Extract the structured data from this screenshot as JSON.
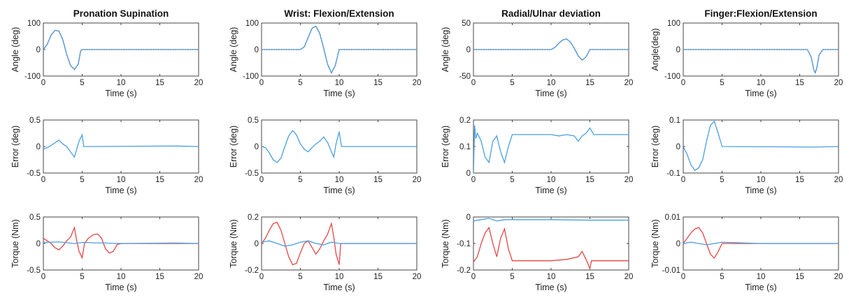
{
  "colors": {
    "measured": "#4a9fe0",
    "reference": "#e64646",
    "axis": "#444444"
  },
  "chart_data": [
    {
      "type": "line",
      "title": "Pronation Supination",
      "xlabel": "Time (s)",
      "ylabel": "Angle (deg)",
      "xlim": [
        0,
        20
      ],
      "ylim": [
        -100,
        100
      ],
      "xticks": [
        0,
        5,
        10,
        15,
        20
      ],
      "yticks": [
        -100,
        0,
        100
      ],
      "series": [
        {
          "style": "reference-dotted",
          "x": [
            0,
            0.5,
            1,
            1.5,
            2,
            2.5,
            3,
            3.5,
            4,
            4.5,
            4.8,
            5,
            20
          ],
          "y": [
            0,
            20,
            55,
            72,
            70,
            38,
            -18,
            -60,
            -75,
            -55,
            -5,
            0,
            0
          ]
        },
        {
          "style": "measured",
          "x": [
            0,
            0.5,
            1,
            1.5,
            2,
            2.5,
            3,
            3.5,
            4,
            4.5,
            4.8,
            5,
            20
          ],
          "y": [
            0,
            20,
            55,
            72,
            70,
            38,
            -18,
            -60,
            -75,
            -55,
            -5,
            0,
            0
          ]
        }
      ]
    },
    {
      "type": "line",
      "title": "Wrist: Flexion/Extension",
      "xlabel": "Time (s)",
      "ylabel": "Angle (deg)",
      "xlim": [
        0,
        20
      ],
      "ylim": [
        -100,
        100
      ],
      "xticks": [
        0,
        5,
        10,
        15,
        20
      ],
      "yticks": [
        -100,
        0,
        100
      ],
      "series": [
        {
          "style": "reference-dotted",
          "x": [
            0,
            5,
            5.5,
            6,
            6.5,
            7,
            7.5,
            8,
            8.5,
            9,
            9.5,
            10,
            20
          ],
          "y": [
            0,
            0,
            10,
            45,
            80,
            88,
            60,
            5,
            -55,
            -88,
            -60,
            0,
            0
          ]
        },
        {
          "style": "measured",
          "x": [
            0,
            5,
            5.5,
            6,
            6.5,
            7,
            7.5,
            8,
            8.5,
            9,
            9.5,
            10,
            20
          ],
          "y": [
            0,
            0,
            10,
            45,
            80,
            88,
            60,
            5,
            -55,
            -88,
            -60,
            0,
            0
          ]
        }
      ]
    },
    {
      "type": "line",
      "title": "Radial/Ulnar deviation",
      "xlabel": "Time (s)",
      "ylabel": "Angle (deg)",
      "xlim": [
        0,
        20
      ],
      "ylim": [
        -50,
        50
      ],
      "xticks": [
        0,
        5,
        10,
        15,
        20
      ],
      "yticks": [
        -50,
        0,
        50
      ],
      "series": [
        {
          "style": "reference-dotted",
          "x": [
            0,
            10,
            10.5,
            11,
            11.5,
            12,
            12.5,
            13,
            13.5,
            14,
            14.5,
            15,
            20
          ],
          "y": [
            0,
            0,
            4,
            12,
            18,
            20,
            14,
            2,
            -12,
            -20,
            -14,
            0,
            0
          ]
        },
        {
          "style": "measured",
          "x": [
            0,
            10,
            10.5,
            11,
            11.5,
            12,
            12.5,
            13,
            13.5,
            14,
            14.5,
            15,
            20
          ],
          "y": [
            0,
            0,
            4,
            12,
            18,
            20,
            14,
            2,
            -12,
            -20,
            -14,
            0,
            0
          ]
        }
      ]
    },
    {
      "type": "line",
      "title": "Finger:Flexion/Extension",
      "xlabel": "Time (s)",
      "ylabel": "Angle(deg)",
      "xlim": [
        0,
        20
      ],
      "ylim": [
        -100,
        100
      ],
      "xticks": [
        0,
        5,
        10,
        15,
        20
      ],
      "yticks": [
        -100,
        0,
        100
      ],
      "series": [
        {
          "style": "reference-dotted",
          "x": [
            0,
            16,
            16.5,
            16.8,
            17,
            17.2,
            17.5,
            18,
            20
          ],
          "y": [
            0,
            0,
            -30,
            -75,
            -88,
            -70,
            -20,
            0,
            0
          ]
        },
        {
          "style": "measured",
          "x": [
            0,
            16,
            16.5,
            16.8,
            17,
            17.2,
            17.5,
            18,
            20
          ],
          "y": [
            0,
            0,
            -30,
            -75,
            -88,
            -70,
            -20,
            0,
            0
          ]
        }
      ]
    },
    {
      "type": "line",
      "title": "",
      "xlabel": "Time (s)",
      "ylabel": "Error (deg)",
      "xlim": [
        0,
        20
      ],
      "ylim": [
        -0.5,
        0.5
      ],
      "xticks": [
        0,
        5,
        10,
        15,
        20
      ],
      "yticks": [
        -0.5,
        0,
        0.5
      ],
      "series": [
        {
          "style": "measured",
          "x": [
            0,
            0.5,
            1,
            1.5,
            2,
            2.5,
            3,
            3.5,
            4,
            4.3,
            4.6,
            5,
            5.2,
            6,
            17,
            20
          ],
          "y": [
            -0.05,
            -0.02,
            0.02,
            0.07,
            0.12,
            0.05,
            0,
            -0.1,
            -0.2,
            -0.05,
            0.1,
            0.22,
            0,
            0,
            0.01,
            0
          ]
        }
      ]
    },
    {
      "type": "line",
      "title": "",
      "xlabel": "Time (s)",
      "ylabel": "Error (deg)",
      "xlim": [
        0,
        20
      ],
      "ylim": [
        -0.5,
        0.5
      ],
      "xticks": [
        0,
        5,
        10,
        15,
        20
      ],
      "yticks": [
        -0.5,
        0,
        0.5
      ],
      "series": [
        {
          "style": "measured",
          "x": [
            0,
            0.5,
            1,
            1.5,
            2,
            2.5,
            3,
            3.5,
            4,
            4.5,
            5,
            5.5,
            6,
            6.5,
            7,
            7.5,
            8,
            8.5,
            9,
            9.3,
            9.6,
            10,
            10.3,
            11,
            20
          ],
          "y": [
            0,
            -0.02,
            -0.12,
            -0.25,
            -0.3,
            -0.22,
            0,
            0.2,
            0.3,
            0.22,
            0.05,
            -0.05,
            -0.1,
            -0.02,
            0.05,
            0.1,
            0.18,
            0.08,
            -0.1,
            -0.2,
            0.05,
            0.28,
            0,
            0,
            0
          ]
        }
      ]
    },
    {
      "type": "line",
      "title": "",
      "xlabel": "Time (s)",
      "ylabel": "Error (deg)",
      "xlim": [
        0,
        20
      ],
      "ylim": [
        0,
        0.2
      ],
      "xticks": [
        0,
        5,
        10,
        15,
        20
      ],
      "yticks": [
        0,
        0.1,
        0.2
      ],
      "series": [
        {
          "style": "measured",
          "x": [
            0,
            0.15,
            0.3,
            0.5,
            1,
            1.5,
            2,
            2.5,
            3,
            3.5,
            4,
            4.5,
            5,
            10,
            11,
            12,
            13,
            13.5,
            14,
            14.5,
            15,
            15.5,
            20
          ],
          "y": [
            0,
            0.18,
            0.13,
            0.15,
            0.12,
            0.06,
            0.04,
            0.12,
            0.14,
            0.08,
            0.04,
            0.1,
            0.145,
            0.145,
            0.14,
            0.145,
            0.14,
            0.12,
            0.14,
            0.15,
            0.17,
            0.145,
            0.145
          ]
        }
      ]
    },
    {
      "type": "line",
      "title": "",
      "xlabel": "Time (s)",
      "ylabel": "Error (deg)",
      "xlim": [
        0,
        20
      ],
      "ylim": [
        -0.1,
        0.1
      ],
      "xticks": [
        0,
        5,
        10,
        15,
        20
      ],
      "yticks": [
        -0.1,
        0,
        0.1
      ],
      "series": [
        {
          "style": "measured",
          "x": [
            0,
            0.5,
            1,
            1.5,
            2,
            2.5,
            3,
            3.5,
            4,
            4.5,
            5,
            17,
            20
          ],
          "y": [
            0,
            -0.03,
            -0.07,
            -0.09,
            -0.08,
            -0.05,
            0.02,
            0.08,
            0.095,
            0.05,
            0,
            -0.002,
            0
          ]
        }
      ]
    },
    {
      "type": "line",
      "title": "",
      "xlabel": "Time (s)",
      "ylabel": "Torque (Nm)",
      "xlim": [
        0,
        20
      ],
      "ylim": [
        -0.5,
        0.5
      ],
      "xticks": [
        0,
        5,
        10,
        15,
        20
      ],
      "yticks": [
        -0.5,
        0,
        0.5
      ],
      "series": [
        {
          "style": "reference",
          "x": [
            0,
            0.5,
            1,
            1.5,
            2,
            2.5,
            3,
            3.5,
            4,
            4.3,
            4.6,
            5,
            5.3,
            5.8,
            6.5,
            7,
            7.5,
            8,
            8.5,
            9,
            9.5,
            10,
            20
          ],
          "y": [
            0.1,
            0.05,
            0,
            -0.08,
            -0.12,
            -0.05,
            0.05,
            0.12,
            0.3,
            0.05,
            -0.15,
            -0.27,
            0,
            0.1,
            0.17,
            0.18,
            0.1,
            -0.1,
            -0.18,
            -0.15,
            -0.02,
            0,
            0
          ]
        },
        {
          "style": "measured",
          "x": [
            0,
            2,
            4,
            5,
            10,
            17,
            20
          ],
          "y": [
            0.02,
            0.03,
            0,
            0.02,
            0,
            0.01,
            0
          ]
        }
      ]
    },
    {
      "type": "line",
      "title": "",
      "xlabel": "Time (s)",
      "ylabel": "Torque (Nm)",
      "xlim": [
        0,
        20
      ],
      "ylim": [
        -0.2,
        0.2
      ],
      "xticks": [
        0,
        5,
        10,
        15,
        20
      ],
      "yticks": [
        -0.2,
        0,
        0.2
      ],
      "series": [
        {
          "style": "reference",
          "x": [
            0,
            0.5,
            1,
            1.5,
            2,
            2.5,
            3,
            3.5,
            4,
            4.5,
            5,
            5.5,
            6,
            6.5,
            7,
            7.5,
            8,
            8.5,
            9,
            9.3,
            9.6,
            10,
            10.2,
            20
          ],
          "y": [
            0,
            0.04,
            0.1,
            0.15,
            0.16,
            0.1,
            0,
            -0.1,
            -0.16,
            -0.15,
            -0.07,
            0,
            0.02,
            -0.03,
            -0.08,
            -0.04,
            0.02,
            0.07,
            0.15,
            0.05,
            -0.08,
            -0.16,
            0,
            0
          ]
        },
        {
          "style": "measured",
          "x": [
            0,
            1,
            2,
            3,
            4,
            5,
            6,
            7,
            8,
            9,
            10,
            20
          ],
          "y": [
            0.01,
            0.02,
            0,
            -0.02,
            -0.01,
            0.01,
            0.02,
            0,
            -0.01,
            0.01,
            0,
            0
          ]
        }
      ]
    },
    {
      "type": "line",
      "title": "",
      "xlabel": "Time (s)",
      "ylabel": "Torque (Nm)",
      "xlim": [
        0,
        20
      ],
      "ylim": [
        -0.2,
        0
      ],
      "xticks": [
        0,
        5,
        10,
        15,
        20
      ],
      "yticks": [
        -0.2,
        -0.1,
        0
      ],
      "series": [
        {
          "style": "reference",
          "x": [
            0,
            0.5,
            1,
            1.5,
            2,
            2.5,
            3,
            3.5,
            4,
            4.5,
            5,
            10,
            12,
            13.5,
            14,
            14.5,
            14.8,
            15,
            15.2,
            16,
            20
          ],
          "y": [
            -0.17,
            -0.15,
            -0.1,
            -0.06,
            -0.04,
            -0.1,
            -0.15,
            -0.08,
            -0.045,
            -0.12,
            -0.165,
            -0.165,
            -0.16,
            -0.15,
            -0.13,
            -0.16,
            -0.18,
            -0.195,
            -0.165,
            -0.165,
            -0.165
          ]
        },
        {
          "style": "measured",
          "x": [
            0,
            1,
            2,
            3,
            4,
            5,
            10,
            15,
            20
          ],
          "y": [
            -0.015,
            -0.01,
            -0.005,
            -0.015,
            -0.01,
            -0.01,
            -0.01,
            -0.012,
            -0.012
          ]
        }
      ]
    },
    {
      "type": "line",
      "title": "",
      "xlabel": "Time (s)",
      "ylabel": "Torque (Nm)",
      "xlim": [
        0,
        20
      ],
      "ylim": [
        -0.01,
        0.01
      ],
      "xticks": [
        0,
        5,
        10,
        15,
        20
      ],
      "yticks": [
        -0.01,
        0,
        0.01
      ],
      "series": [
        {
          "style": "reference",
          "x": [
            0,
            0.5,
            1,
            1.5,
            2,
            2.5,
            3,
            3.5,
            4,
            4.5,
            5,
            17,
            20
          ],
          "y": [
            0,
            0.002,
            0.004,
            0.0055,
            0.006,
            0.004,
            0,
            -0.004,
            -0.0055,
            -0.003,
            0,
            0,
            0
          ]
        },
        {
          "style": "measured",
          "x": [
            0,
            1,
            2,
            3,
            4,
            5,
            10,
            20
          ],
          "y": [
            0,
            0.0005,
            0,
            -0.0005,
            0,
            0.0005,
            0,
            0
          ]
        }
      ]
    }
  ]
}
